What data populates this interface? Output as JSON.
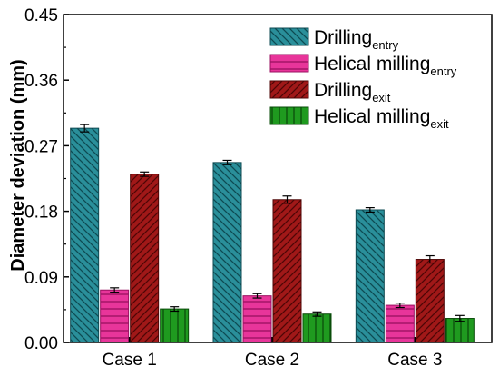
{
  "chart_data": {
    "type": "bar",
    "categories": [
      "Case 1",
      "Case 2",
      "Case 3"
    ],
    "ylabel": "Diameter deviation (mm)",
    "xlabel": "",
    "ylim": [
      0,
      0.45
    ],
    "yticks": [
      "0.00",
      "0.09",
      "0.18",
      "0.27",
      "0.36",
      "0.45"
    ],
    "legend_position": "top-right",
    "series": [
      {
        "name": "Drilling",
        "sub": "entry",
        "color": "#2a8f9a",
        "stroke": "#0e4a52",
        "pattern": "diag-back",
        "values": [
          0.294,
          0.247,
          0.182
        ],
        "errors": [
          0.005,
          0.003,
          0.003
        ]
      },
      {
        "name": "Helical milling",
        "sub": "entry",
        "color": "#e8359a",
        "stroke": "#9a1060",
        "pattern": "horizontal",
        "values": [
          0.072,
          0.064,
          0.051
        ],
        "errors": [
          0.003,
          0.003,
          0.003
        ]
      },
      {
        "name": "Drilling",
        "sub": "exit",
        "color": "#a01818",
        "stroke": "#4e0606",
        "pattern": "diag-fwd",
        "values": [
          0.231,
          0.196,
          0.114
        ],
        "errors": [
          0.003,
          0.005,
          0.005
        ]
      },
      {
        "name": "Helical milling",
        "sub": "exit",
        "color": "#1f9a1f",
        "stroke": "#0a4d0a",
        "pattern": "vertical",
        "values": [
          0.046,
          0.039,
          0.033
        ],
        "errors": [
          0.003,
          0.003,
          0.004
        ]
      }
    ]
  }
}
